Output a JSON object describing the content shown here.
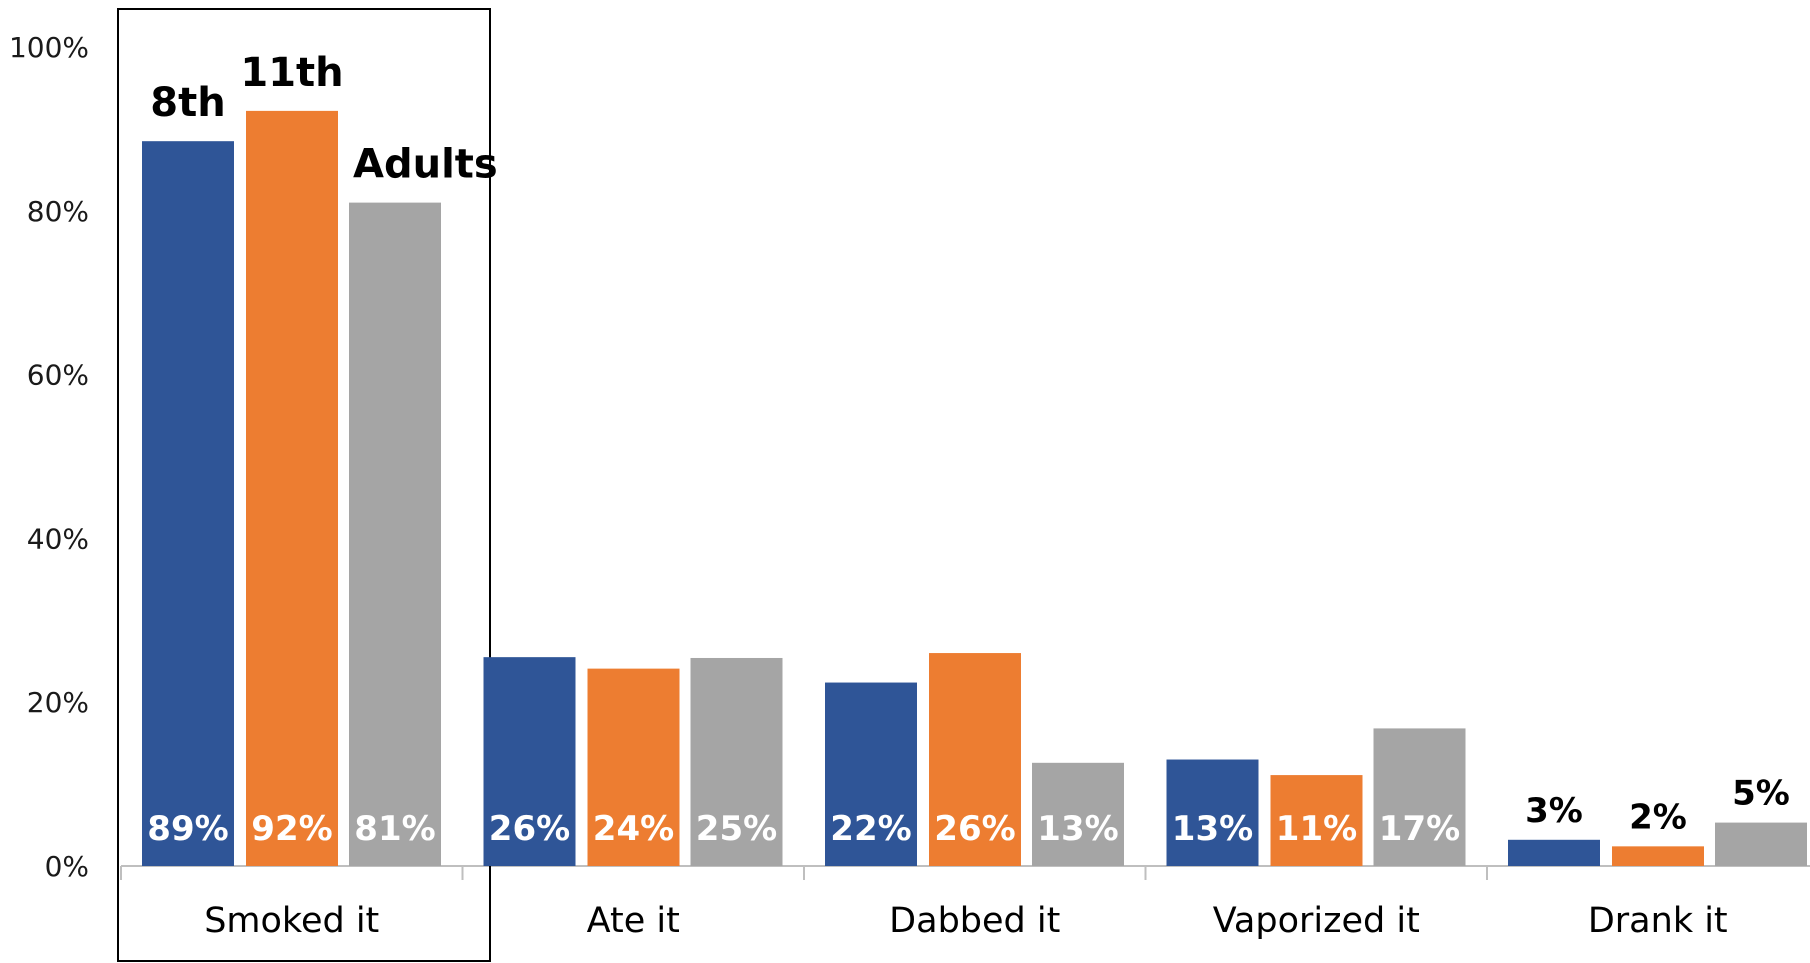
{
  "chart_data": {
    "type": "bar",
    "title": "",
    "xlabel": "",
    "ylabel": "",
    "ylim": [
      0,
      100
    ],
    "y_ticks": [
      "0%",
      "20%",
      "40%",
      "60%",
      "80%",
      "100%"
    ],
    "categories": [
      "Smoked it",
      "Ate it",
      "Dabbed it",
      "Vaporized it",
      "Drank it"
    ],
    "highlighted_category": "Smoked it",
    "series": [
      {
        "name": "8th",
        "color": "#2F5597",
        "values": [
          88.5,
          25.5,
          22.4,
          13.0,
          3.2
        ],
        "labels": [
          "89%",
          "26%",
          "22%",
          "13%",
          "3%"
        ]
      },
      {
        "name": "11th",
        "color": "#ED7D31",
        "values": [
          92.2,
          24.1,
          26.0,
          11.1,
          2.4
        ],
        "labels": [
          "92%",
          "24%",
          "26%",
          "11%",
          "2%"
        ]
      },
      {
        "name": "Adults",
        "color": "#A5A5A5",
        "values": [
          81.0,
          25.4,
          12.6,
          16.8,
          5.3
        ],
        "labels": [
          "81%",
          "25%",
          "13%",
          "17%",
          "5%"
        ]
      }
    ],
    "grid": false,
    "legend": "none",
    "label_text_colors": {
      "inside": "#ffffff",
      "outside": "#000000"
    },
    "axis_color": "#BFBFBF"
  }
}
